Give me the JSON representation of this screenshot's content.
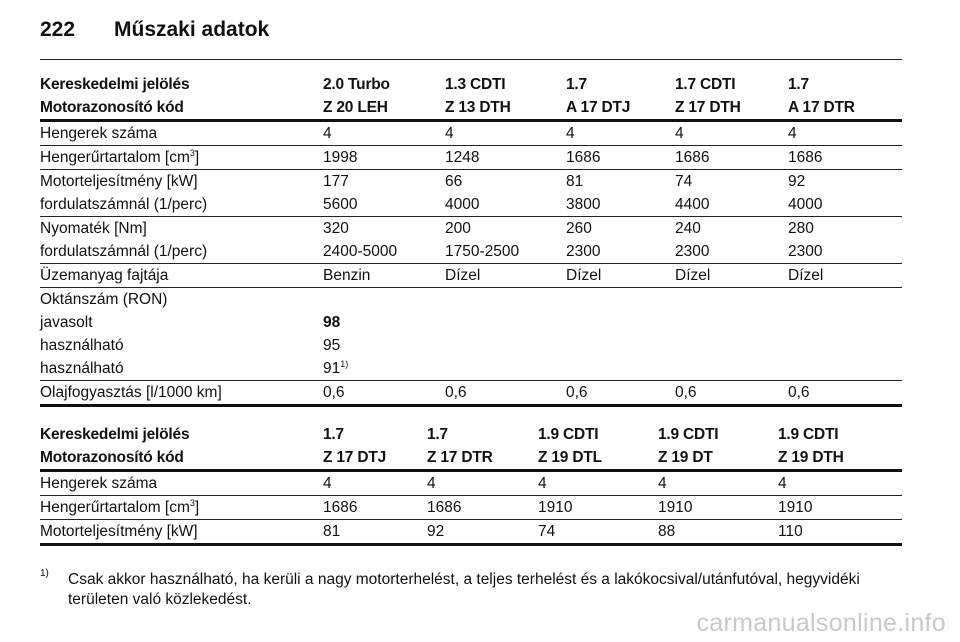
{
  "page": {
    "number": "222",
    "title": "Műszaki adatok"
  },
  "table1": {
    "header1": [
      "Kereskedelmi jelölés",
      "2.0 Turbo",
      "1.3 CDTI",
      "1.7",
      "1.7 CDTI",
      "1.7"
    ],
    "header2": [
      "Motorazonosító kód",
      "Z 20 LEH",
      "Z 13 DTH",
      "A 17 DTJ",
      "Z 17 DTH",
      "A 17 DTR"
    ],
    "rows": {
      "cylinders": [
        "Hengerek száma",
        "4",
        "4",
        "4",
        "4",
        "4"
      ],
      "displacement": {
        "label": "Hengerűrtartalom [cm",
        "sup": "3",
        "label_end": "]",
        "values": [
          "1998",
          "1248",
          "1686",
          "1686",
          "1686"
        ]
      },
      "power": [
        "Motorteljesítmény [kW]",
        "177",
        "66",
        "81",
        "74",
        "92"
      ],
      "power_rpm": [
        "fordulatszámnál (1/perc)",
        "5600",
        "4000",
        "3800",
        "4400",
        "4000"
      ],
      "torque": [
        "Nyomaték [Nm]",
        "320",
        "200",
        "260",
        "240",
        "280"
      ],
      "torque_rpm": [
        "fordulatszámnál (1/perc)",
        "2400-5000",
        "1750-2500",
        "2300",
        "2300",
        "2300"
      ],
      "fuel": [
        "Üzemanyag fajtája",
        "Benzin",
        "Dízel",
        "Dízel",
        "Dízel",
        "Dízel"
      ],
      "octane": [
        "Oktánszám (RON)"
      ],
      "recommended": [
        "javasolt",
        "98"
      ],
      "usable1": [
        "használható",
        "95"
      ],
      "usable2": {
        "label": "használható",
        "value": "91",
        "sup": "1)"
      },
      "oil": [
        "Olajfogyasztás [l/1000 km]",
        "0,6",
        "0,6",
        "0,6",
        "0,6",
        "0,6"
      ]
    }
  },
  "table2": {
    "header1": [
      "Kereskedelmi jelölés",
      "1.7",
      "1.7",
      "1.9 CDTI",
      "1.9 CDTI",
      "1.9 CDTI"
    ],
    "header2": [
      "Motorazonosító kód",
      "Z 17 DTJ",
      "Z 17 DTR",
      "Z 19 DTL",
      "Z 19 DT",
      "Z 19 DTH"
    ],
    "rows": {
      "cylinders": [
        "Hengerek száma",
        "4",
        "4",
        "4",
        "4",
        "4"
      ],
      "displacement": {
        "label": "Hengerűrtartalom [cm",
        "sup": "3",
        "label_end": "]",
        "values": [
          "1686",
          "1686",
          "1910",
          "1910",
          "1910"
        ]
      },
      "power": [
        "Motorteljesítmény [kW]",
        "81",
        "92",
        "74",
        "88",
        "110"
      ]
    }
  },
  "footnote": {
    "mark": "1)",
    "text": "Csak akkor használható, ha kerüli a nagy motorterhelést, a teljes terhelést és a lakókocsival/utánfutóval, hegyvidéki területen való közlekedést."
  },
  "watermark": "carmanualsonline.info"
}
